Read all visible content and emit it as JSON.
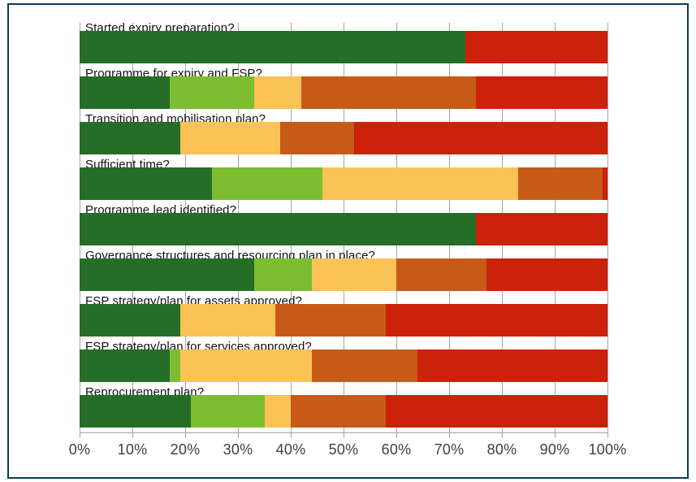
{
  "figure": {
    "background_color": "#ffffff",
    "border_color": "#0e3a5c",
    "gridline_color": "#a6a6a6",
    "tick_label_color": "#404040",
    "category_label_color": "#111111"
  },
  "chart_data": {
    "type": "bar",
    "orientation": "horizontal-stacked",
    "unit": "percent",
    "xlim": [
      0,
      100
    ],
    "grid": "vertical",
    "legend": "none",
    "x_ticks": [
      "0%",
      "10%",
      "20%",
      "30%",
      "40%",
      "50%",
      "60%",
      "70%",
      "80%",
      "90%",
      "100%"
    ],
    "categories": [
      "Started expiry preparation?",
      "Programme for expiry and FSP?",
      "Transition and mobilisation plan?",
      "Sufficient time?",
      "Programme lead identified?",
      "Governance structures and resourcing plan in place?",
      "FSP strategy/plan for assets approved?",
      "FSP strategy/plan for services approved?",
      "Reprocurement plan?"
    ],
    "series": [
      {
        "name": "dark-green",
        "color": "#256e27",
        "values": [
          73,
          17,
          19,
          25,
          75,
          33,
          19,
          17,
          21
        ]
      },
      {
        "name": "light-green",
        "color": "#7dbd30",
        "values": [
          0,
          16,
          0,
          21,
          0,
          11,
          0,
          2,
          14
        ]
      },
      {
        "name": "amber",
        "color": "#fbc255",
        "values": [
          0,
          9,
          19,
          37,
          0,
          16,
          18,
          25,
          5
        ]
      },
      {
        "name": "orange",
        "color": "#c65b18",
        "values": [
          0,
          33,
          14,
          16,
          0,
          17,
          21,
          20,
          18
        ]
      },
      {
        "name": "red",
        "color": "#cc210a",
        "values": [
          27,
          25,
          48,
          1,
          25,
          23,
          42,
          36,
          42
        ]
      }
    ]
  }
}
